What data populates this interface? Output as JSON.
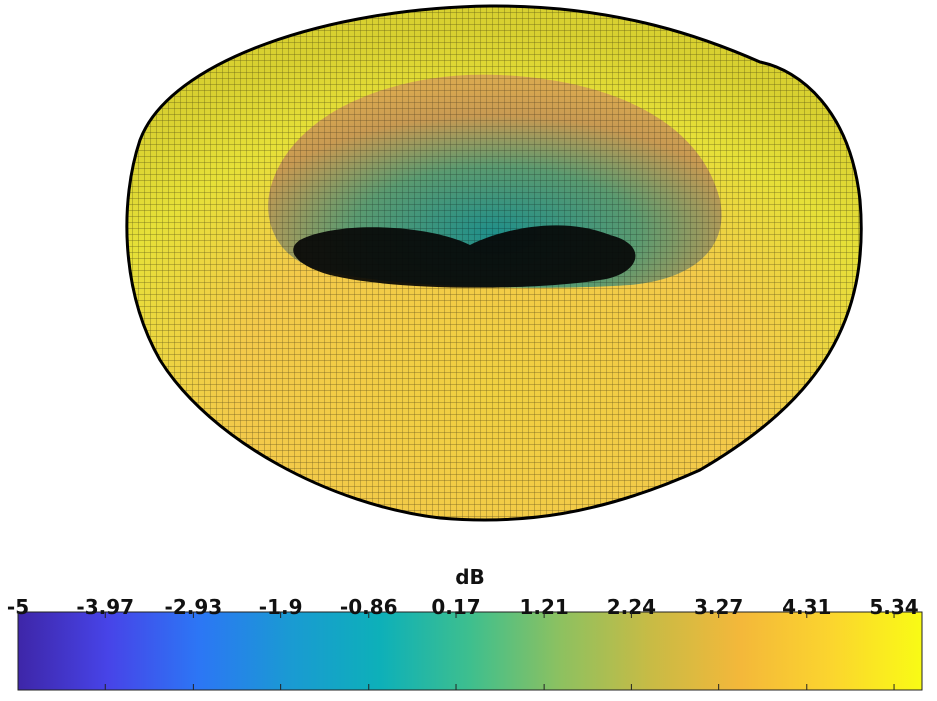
{
  "chart_data": {
    "type": "surface",
    "colorbar": {
      "label": "dB",
      "clim": [
        -5,
        5.67
      ],
      "ticks": [
        -5,
        -3.97,
        -2.93,
        -1.9,
        -0.86,
        0.17,
        1.21,
        2.24,
        3.27,
        4.31,
        5.34
      ],
      "colormap": [
        "#3e26a8",
        "#4744e8",
        "#2c76f5",
        "#1a9ad3",
        "#0db0b9",
        "#3ebf8e",
        "#8dc160",
        "#c8bb45",
        "#f4b83a",
        "#fbd52e",
        "#f9fb15"
      ]
    }
  }
}
